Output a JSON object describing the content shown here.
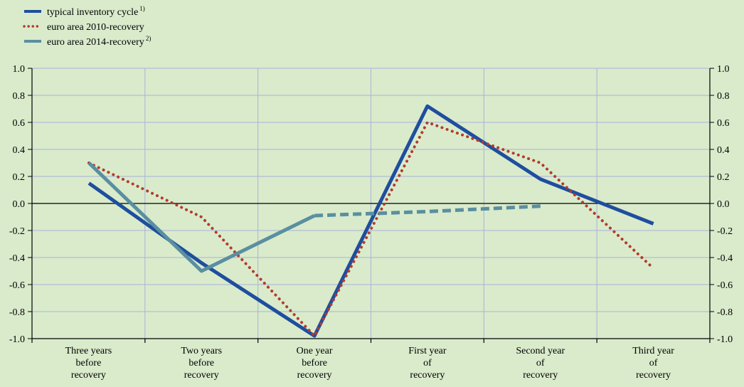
{
  "chart_data": {
    "type": "line",
    "categories": [
      [
        "Three years",
        "before",
        "recovery"
      ],
      [
        "Two years",
        "before",
        "recovery"
      ],
      [
        "One year",
        "before",
        "recovery"
      ],
      [
        "First year",
        "of",
        "recovery"
      ],
      [
        "Second year",
        "of",
        "recovery"
      ],
      [
        "Third year",
        "of",
        "recovery"
      ]
    ],
    "ylim": [
      -1.0,
      1.0
    ],
    "yticks": [
      "1.0",
      "0.8",
      "0.6",
      "0.4",
      "0.2",
      "0.0",
      "-0.2",
      "-0.4",
      "-0.6",
      "-0.8",
      "-1.0"
    ],
    "grid": true,
    "legend_position": "top-left",
    "series": [
      {
        "name": "typical inventory cycle",
        "footnote": "1)",
        "style": "solid",
        "color": "#1f4e9e",
        "points": [
          {
            "x": 0,
            "y": 0.15
          },
          {
            "x": 1.5,
            "y": -0.44
          },
          {
            "x": 2.5,
            "y": -0.98
          },
          {
            "x": 3.5,
            "y": 0.72
          },
          {
            "x": 4.5,
            "y": 0.18
          },
          {
            "x": 5.5,
            "y": -0.15
          }
        ]
      },
      {
        "name": "euro area 2010-recovery",
        "style": "dotted",
        "color": "#b33a2e",
        "points": [
          {
            "x": 0,
            "y": 0.3
          },
          {
            "x": 1.5,
            "y": -0.1
          },
          {
            "x": 2.5,
            "y": -0.98
          },
          {
            "x": 3.5,
            "y": 0.6
          },
          {
            "x": 4.5,
            "y": 0.3
          },
          {
            "x": 5.5,
            "y": -0.48
          }
        ]
      },
      {
        "name": "euro area 2014-recovery",
        "footnote": "2)",
        "style": "solid-then-dashed",
        "color": "#5a8fa0",
        "points": [
          {
            "x": 0,
            "y": 0.3
          },
          {
            "x": 1.5,
            "y": -0.5
          },
          {
            "x": 2.5,
            "y": -0.09
          },
          {
            "x": 3.5,
            "y": -0.06
          },
          {
            "x": 4.5,
            "y": -0.02
          }
        ],
        "dashed_from_index": 2
      }
    ]
  }
}
